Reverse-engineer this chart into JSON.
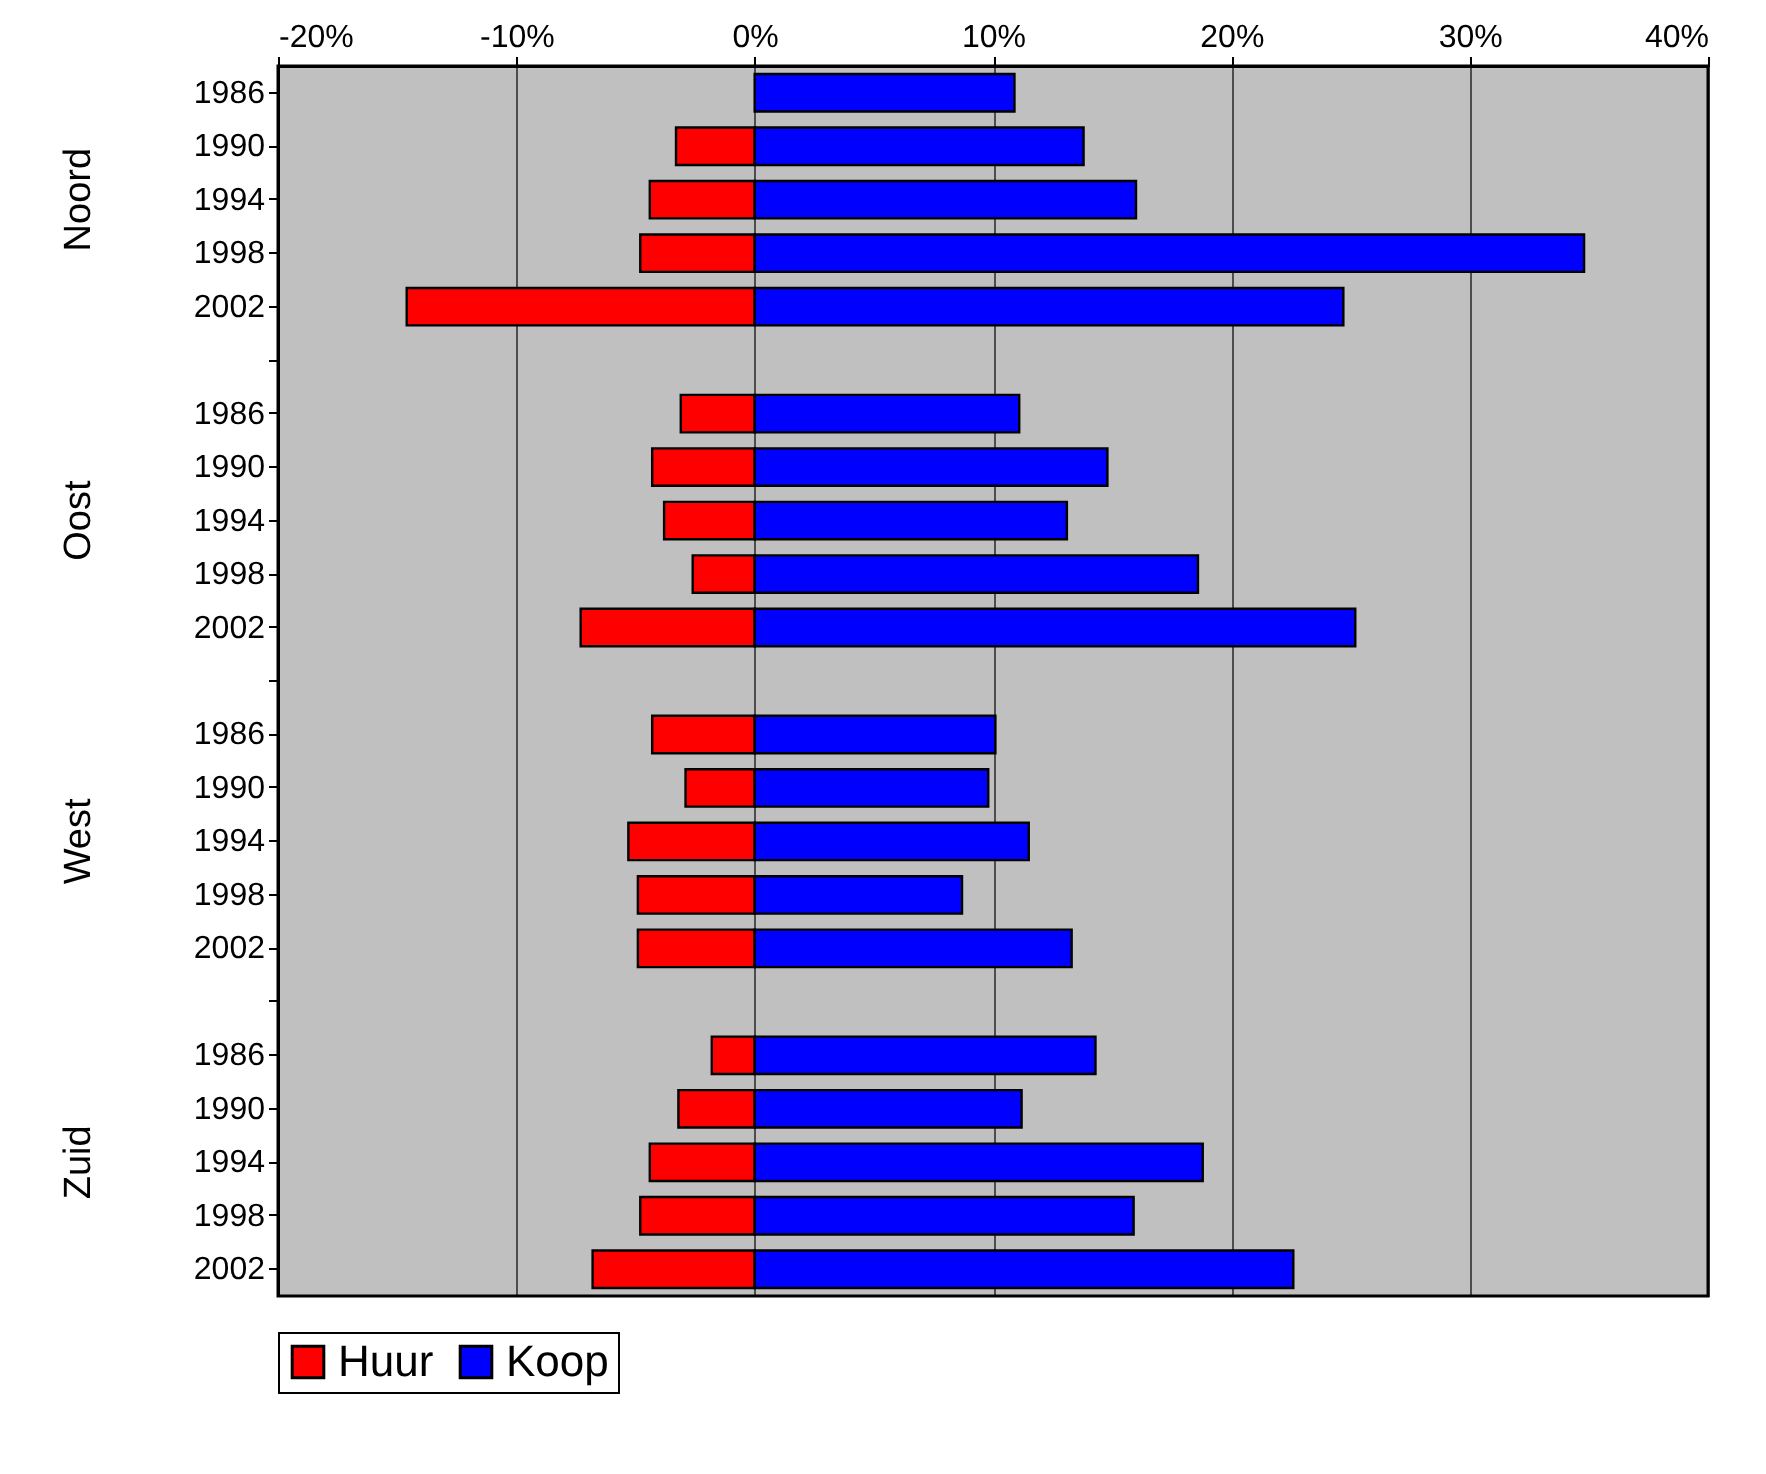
{
  "chart_data": {
    "type": "bar",
    "orientation": "horizontal",
    "stacked": true,
    "categories": [
      "1986",
      "1990",
      "1994",
      "1998",
      "2002",
      null,
      "1986",
      "1990",
      "1994",
      "1998",
      "2002",
      null,
      "1986",
      "1990",
      "1994",
      "1998",
      "2002",
      null,
      "1986",
      "1990",
      "1994",
      "1998",
      "2002"
    ],
    "annotations": [
      "Noord",
      "Oost",
      "West",
      "Zuid"
    ],
    "series": [
      {
        "name": "Huur",
        "color": "#ff0000",
        "values": [
          null,
          -3.3,
          -4.4,
          -4.8,
          -14.6,
          null,
          -3.1,
          -4.3,
          -3.8,
          -2.6,
          -7.3,
          null,
          -4.3,
          -2.9,
          -5.3,
          -4.9,
          -4.9,
          null,
          -1.8,
          -3.2,
          -4.4,
          -4.8,
          -6.8
        ]
      },
      {
        "name": "Koop",
        "color": "#0000ff",
        "values": [
          10.9,
          13.8,
          16.0,
          34.8,
          24.7,
          null,
          11.1,
          14.8,
          13.1,
          18.6,
          25.2,
          null,
          10.1,
          9.8,
          11.5,
          8.7,
          13.3,
          null,
          14.3,
          11.2,
          18.8,
          15.9,
          22.6
        ]
      }
    ],
    "xlim": [
      -20,
      40
    ],
    "xticks": [
      {
        "value": -20,
        "label": "-20%"
      },
      {
        "value": -10,
        "label": "-10%"
      },
      {
        "value": 0,
        "label": "0%"
      },
      {
        "value": 10,
        "label": "10%"
      },
      {
        "value": 20,
        "label": "20%"
      },
      {
        "value": 30,
        "label": "30%"
      },
      {
        "value": 40,
        "label": "40%"
      }
    ],
    "grid": "x",
    "legend": "bottom"
  }
}
